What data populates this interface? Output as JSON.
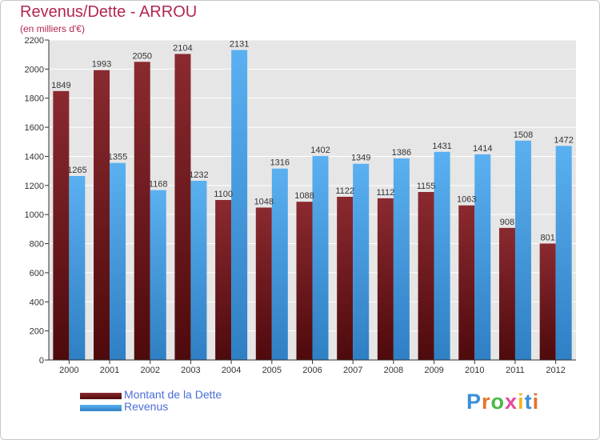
{
  "header": {
    "title": "Revenus/Dette - ARROU",
    "subtitle": "(en milliers d'€)"
  },
  "colors": {
    "dette": "#6e1a1f",
    "revenus": "#4aa3e8",
    "title": "#b3264f",
    "legend_text": "#4a6ed8"
  },
  "logo": {
    "text": "Proxiti",
    "letters": [
      {
        "ch": "P",
        "color": "#3a8fd8"
      },
      {
        "ch": "r",
        "color": "#e8702a"
      },
      {
        "ch": "o",
        "color": "#4cb848"
      },
      {
        "ch": "x",
        "color": "#e84a9a"
      },
      {
        "ch": "i",
        "color": "#f0b820"
      },
      {
        "ch": "t",
        "color": "#3a8fd8"
      },
      {
        "ch": "i",
        "color": "#e8702a"
      }
    ]
  },
  "chart_data": {
    "type": "bar",
    "title": "Revenus/Dette - ARROU",
    "subtitle": "(en milliers d'€)",
    "categories": [
      "2000",
      "2001",
      "2002",
      "2003",
      "2004",
      "2005",
      "2006",
      "2007",
      "2008",
      "2009",
      "2010",
      "2011",
      "2012"
    ],
    "series": [
      {
        "name": "Montant de la Dette",
        "color": "#6e1a1f",
        "values": [
          1849,
          1993,
          2050,
          2104,
          1100,
          1048,
          1088,
          1122,
          1112,
          1155,
          1063,
          908,
          801
        ]
      },
      {
        "name": "Revenus",
        "color": "#4aa3e8",
        "values": [
          1265,
          1355,
          1168,
          1232,
          2131,
          1316,
          1402,
          1349,
          1386,
          1431,
          1414,
          1508,
          1472
        ]
      }
    ],
    "ylim": [
      0,
      2200
    ],
    "yticks": [
      0,
      200,
      400,
      600,
      800,
      1000,
      1200,
      1400,
      1600,
      1800,
      2000,
      2200
    ],
    "grid": true,
    "legend_position": "bottom-left"
  }
}
